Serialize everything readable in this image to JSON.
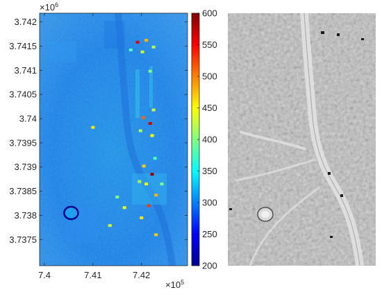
{
  "chart_data": [
    {
      "type": "heatmap",
      "title": "",
      "xlabel": "",
      "ylabel": "",
      "x_exponent_label": "×10",
      "x_exponent": "5",
      "y_exponent_label": "×10",
      "y_exponent": "6",
      "xlim": [
        739900,
        742950
      ],
      "ylim": [
        3736960,
        3742180
      ],
      "x_ticks": [
        740000,
        741000,
        742000
      ],
      "x_tick_labels": [
        "7.4",
        "7.41",
        "7.42"
      ],
      "y_ticks": [
        3737500,
        3738000,
        3738500,
        3739000,
        3739500,
        3740000,
        3740500,
        3741000,
        3741500,
        3742000
      ],
      "y_tick_labels": [
        "3.7375",
        "3.738",
        "3.7385",
        "3.739",
        "3.7395",
        "3.74",
        "3.7405",
        "3.741",
        "3.7415",
        "3.742"
      ],
      "colormap": "jet",
      "colorbar": {
        "min": 200,
        "max": 600,
        "ticks": [
          200,
          250,
          300,
          350,
          400,
          450,
          500,
          550,
          600
        ],
        "tick_labels": [
          "200",
          "250",
          "300",
          "350",
          "400",
          "450",
          "500",
          "550",
          "600"
        ]
      },
      "background_value": 300,
      "hotspots": [
        {
          "x": 741920,
          "y": 3741580,
          "value": 560
        },
        {
          "x": 742100,
          "y": 3741620,
          "value": 480
        },
        {
          "x": 742250,
          "y": 3741480,
          "value": 420
        },
        {
          "x": 742020,
          "y": 3741380,
          "value": 430
        },
        {
          "x": 741780,
          "y": 3741420,
          "value": 380
        },
        {
          "x": 742180,
          "y": 3740980,
          "value": 400
        },
        {
          "x": 742040,
          "y": 3740020,
          "value": 510
        },
        {
          "x": 742180,
          "y": 3739900,
          "value": 570
        },
        {
          "x": 742220,
          "y": 3739650,
          "value": 450
        },
        {
          "x": 741980,
          "y": 3739750,
          "value": 420
        },
        {
          "x": 741000,
          "y": 3739820,
          "value": 460
        },
        {
          "x": 742050,
          "y": 3739020,
          "value": 470
        },
        {
          "x": 742220,
          "y": 3738850,
          "value": 590
        },
        {
          "x": 742100,
          "y": 3738650,
          "value": 450
        },
        {
          "x": 741960,
          "y": 3738700,
          "value": 420
        },
        {
          "x": 742420,
          "y": 3738650,
          "value": 400
        },
        {
          "x": 742300,
          "y": 3738420,
          "value": 480
        },
        {
          "x": 742150,
          "y": 3738200,
          "value": 530
        },
        {
          "x": 741650,
          "y": 3738160,
          "value": 440
        },
        {
          "x": 742000,
          "y": 3737950,
          "value": 460
        },
        {
          "x": 741350,
          "y": 3737790,
          "value": 430
        },
        {
          "x": 742300,
          "y": 3737600,
          "value": 470
        },
        {
          "x": 741500,
          "y": 3738380,
          "value": 400
        },
        {
          "x": 742250,
          "y": 3740180,
          "value": 430
        },
        {
          "x": 742280,
          "y": 3739180,
          "value": 380
        }
      ],
      "low_features": [
        {
          "x": 740550,
          "y": 3738050,
          "value": 205
        }
      ]
    },
    {
      "type": "heatmap",
      "title": "",
      "colormap": "gray",
      "description_value": "hillshade"
    }
  ]
}
